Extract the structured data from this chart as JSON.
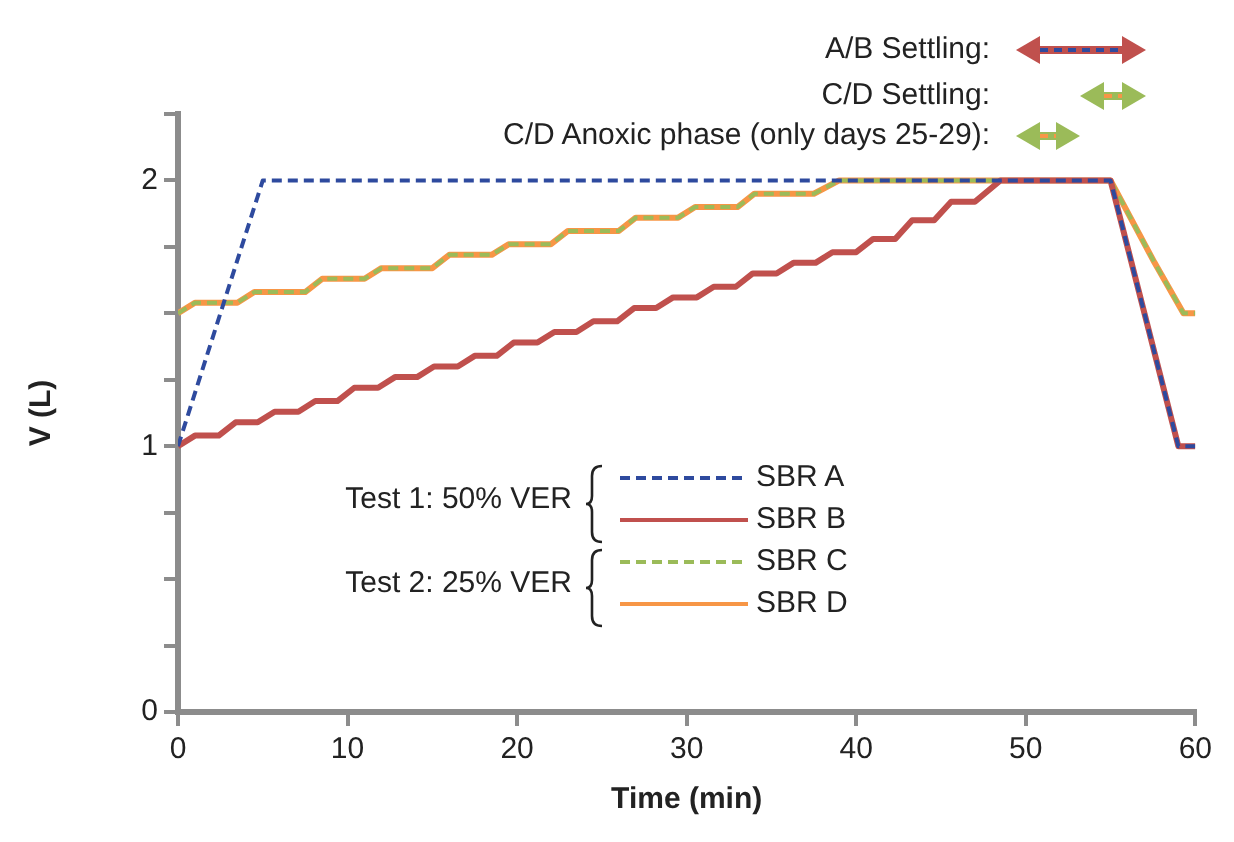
{
  "chart_data": {
    "type": "line",
    "xlabel": "Time (min)",
    "ylabel": "V (L)",
    "xlim": [
      0,
      60
    ],
    "xticks": [
      0,
      10,
      20,
      30,
      40,
      50,
      60
    ],
    "ylim": [
      0,
      2.25
    ],
    "yticks": [
      0,
      {
        "value": 0.25,
        "label": null
      },
      {
        "value": 0.5,
        "label": null
      },
      {
        "value": 0.75,
        "label": null
      },
      1,
      {
        "value": 1.25,
        "label": null
      },
      {
        "value": 1.5,
        "label": null
      },
      {
        "value": 1.75,
        "label": null
      },
      2,
      {
        "value": 2.25,
        "label": null
      }
    ],
    "grid": false,
    "legend": "center",
    "annotations": [
      "A/B Settling:",
      "C/D Settling:",
      "C/D Anoxic phase (only days 25-29):",
      "Test 1: 50% VER",
      "Test 2: 25% VER"
    ],
    "series": [
      {
        "name": "SBR A",
        "color": "#2e4a9e",
        "line_style": "dashed",
        "x": [
          0,
          5,
          55,
          59,
          60
        ],
        "values": [
          1,
          2,
          2,
          1,
          1
        ]
      },
      {
        "name": "SBR B",
        "color": "#c0504d",
        "line_style": "solid",
        "x": [
          0,
          1,
          2.4,
          3.4,
          4.7,
          5.7,
          7.1,
          8.1,
          9.4,
          10.4,
          11.8,
          12.8,
          14.1,
          15.1,
          16.5,
          17.5,
          18.8,
          19.8,
          21.2,
          22.2,
          23.5,
          24.5,
          25.9,
          26.9,
          28.2,
          29.2,
          30.6,
          31.6,
          32.9,
          33.9,
          35.3,
          36.3,
          37.6,
          38.6,
          40,
          41,
          42.3,
          43.3,
          44.6,
          45.6,
          47,
          48.5,
          55,
          59,
          60
        ],
        "values": [
          1,
          1.04,
          1.04,
          1.09,
          1.09,
          1.13,
          1.13,
          1.17,
          1.17,
          1.22,
          1.22,
          1.26,
          1.26,
          1.3,
          1.3,
          1.34,
          1.34,
          1.39,
          1.39,
          1.43,
          1.43,
          1.47,
          1.47,
          1.52,
          1.52,
          1.56,
          1.56,
          1.6,
          1.6,
          1.65,
          1.65,
          1.69,
          1.69,
          1.73,
          1.73,
          1.78,
          1.78,
          1.85,
          1.85,
          1.92,
          1.92,
          2,
          2,
          1,
          1
        ]
      },
      {
        "name": "SBR C",
        "color": "#9bbb59",
        "line_style": "dashed",
        "x": [
          0,
          1,
          3.5,
          4.5,
          7.5,
          8.5,
          11,
          12,
          15,
          16,
          18.5,
          19.5,
          22,
          23,
          26,
          27,
          29.5,
          30.5,
          33,
          34,
          37.5,
          39,
          55,
          57.6,
          59.3,
          60
        ],
        "values": [
          1.5,
          1.54,
          1.54,
          1.58,
          1.58,
          1.63,
          1.63,
          1.67,
          1.67,
          1.72,
          1.72,
          1.76,
          1.76,
          1.81,
          1.81,
          1.86,
          1.86,
          1.9,
          1.9,
          1.95,
          1.95,
          2,
          2,
          1.69,
          1.5,
          1.5
        ]
      },
      {
        "name": "SBR D",
        "color": "#f79646",
        "line_style": "solid",
        "x": [
          0,
          1,
          3.5,
          4.5,
          7.5,
          8.5,
          11,
          12,
          15,
          16,
          18.5,
          19.5,
          22,
          23,
          26,
          27,
          29.5,
          30.5,
          33,
          34,
          37.5,
          39,
          55,
          57.6,
          59.3,
          60
        ],
        "values": [
          1.5,
          1.54,
          1.54,
          1.58,
          1.58,
          1.63,
          1.63,
          1.67,
          1.67,
          1.72,
          1.72,
          1.76,
          1.76,
          1.81,
          1.81,
          1.86,
          1.86,
          1.9,
          1.9,
          1.95,
          1.95,
          2,
          2,
          1.69,
          1.5,
          1.5
        ]
      }
    ]
  }
}
